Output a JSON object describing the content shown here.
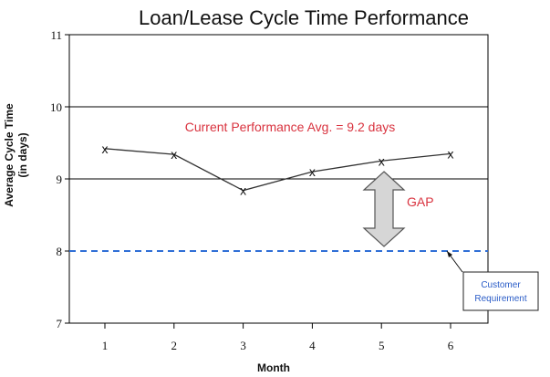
{
  "chart_data": {
    "type": "line",
    "title": "Loan/Lease Cycle Time Performance",
    "xlabel": "Month",
    "ylabel_line1": "Average Cycle Time",
    "ylabel_line2": "(in days)",
    "categories": [
      "1",
      "2",
      "3",
      "4",
      "5",
      "6"
    ],
    "series": [
      {
        "values": [
          9.42,
          9.34,
          8.84,
          9.1,
          9.25,
          9.35
        ],
        "marker": "x"
      }
    ],
    "yticks": [
      "7",
      "8",
      "9",
      "10",
      "11"
    ],
    "ylim": [
      7,
      11
    ],
    "gridlines": [
      9,
      10
    ],
    "reference_line": {
      "value": 8,
      "style": "dashed",
      "color": "#2f6fd6"
    },
    "annotations": {
      "current_performance": "Current Performance  Avg. = 9.2 days",
      "gap": "GAP",
      "customer_requirement_line1": "Customer",
      "customer_requirement_line2": "Requirement"
    },
    "colors": {
      "line": "#333333",
      "annotation": "#d9333f",
      "requirement": "#2f6fd6",
      "arrow_fill": "#d6d6d6"
    }
  }
}
